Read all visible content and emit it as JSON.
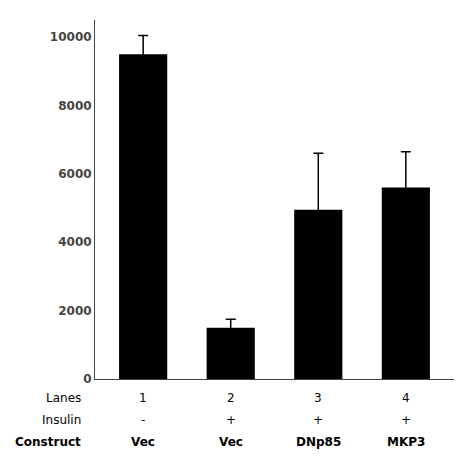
{
  "chart_data": {
    "type": "bar",
    "categories": [
      "1",
      "2",
      "3",
      "4"
    ],
    "values": [
      9500,
      1500,
      4950,
      5600
    ],
    "errors": [
      550,
      250,
      1650,
      1050
    ],
    "color": "#000000",
    "ylim": [
      0,
      10500
    ],
    "yticks": [
      0,
      2000,
      4000,
      6000,
      8000,
      10000
    ],
    "grid": false,
    "tick_labels": "y",
    "rows": [
      {
        "label": "Lanes",
        "texts": [
          "1",
          "2",
          "3",
          "4"
        ]
      },
      {
        "label": "Insulin",
        "texts": [
          "-",
          "+",
          "+",
          "+"
        ]
      },
      {
        "label": "Construct",
        "texts": [
          "Vec",
          "Vec",
          "DNp85",
          "MKP3"
        ]
      }
    ]
  }
}
